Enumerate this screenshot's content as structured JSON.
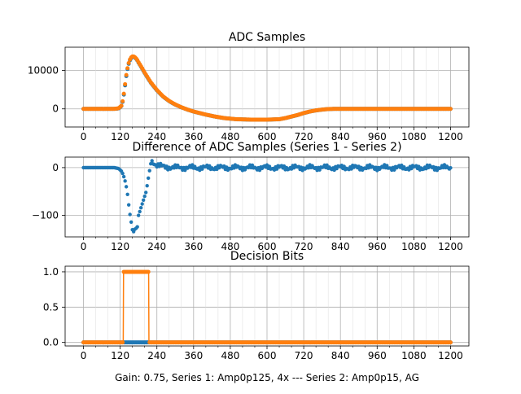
{
  "figure": {
    "footer": "Gain: 0.75, Series 1: Amp0p125, 4x --- Series 2: Amp0p15, AG"
  },
  "colors": {
    "series1": "#1f77b4",
    "series2": "#ff7f0e",
    "grid": "#b0b0b0"
  },
  "chart_data": [
    {
      "type": "scatter",
      "title": "ADC Samples",
      "xlabel": "",
      "ylabel": "",
      "xlim": [
        -60,
        1260
      ],
      "ylim": [
        -4700,
        16000
      ],
      "xticks": [
        0,
        120,
        240,
        360,
        480,
        600,
        720,
        840,
        960,
        1080,
        1200
      ],
      "yticks": [
        0,
        10000
      ],
      "grid": true,
      "minor_x_step": 40,
      "series": [
        {
          "points_x": [
            0,
            100,
            115,
            125,
            130,
            135,
            140,
            145,
            150,
            155,
            160,
            165,
            170,
            175,
            180,
            190,
            200,
            220,
            240,
            260,
            280,
            300,
            320,
            340,
            360,
            380,
            400,
            430,
            460,
            500,
            550,
            600,
            640,
            660,
            680,
            700,
            720,
            740,
            760,
            780,
            800,
            820,
            840,
            900,
            1000,
            1100,
            1200
          ],
          "points_y": [
            0,
            0,
            100,
            800,
            2500,
            5500,
            8500,
            10800,
            12300,
            13100,
            13500,
            13500,
            13200,
            12700,
            12000,
            10700,
            9300,
            6800,
            4800,
            3200,
            2000,
            1100,
            400,
            -200,
            -700,
            -1100,
            -1500,
            -2000,
            -2400,
            -2700,
            -2800,
            -2800,
            -2700,
            -2400,
            -2000,
            -1600,
            -1100,
            -700,
            -400,
            -200,
            -50,
            0,
            0,
            0,
            0,
            0,
            0
          ]
        },
        {
          "points_x": [
            0,
            100,
            115,
            125,
            130,
            135,
            140,
            145,
            150,
            155,
            160,
            165,
            170,
            175,
            180,
            190,
            200,
            220,
            240,
            260,
            280,
            300,
            320,
            340,
            360,
            380,
            400,
            430,
            460,
            500,
            550,
            600,
            640,
            660,
            680,
            700,
            720,
            740,
            760,
            780,
            800,
            820,
            840,
            900,
            1000,
            1100,
            1200
          ],
          "points_y": [
            0,
            0,
            150,
            900,
            2700,
            5800,
            8800,
            11000,
            12500,
            13300,
            13600,
            13600,
            13300,
            12800,
            12100,
            10800,
            9400,
            6900,
            4900,
            3250,
            2050,
            1150,
            420,
            -190,
            -690,
            -1090,
            -1490,
            -1990,
            -2390,
            -2690,
            -2790,
            -2790,
            -2690,
            -2390,
            -1990,
            -1590,
            -1090,
            -690,
            -390,
            -190,
            -40,
            0,
            0,
            0,
            0,
            0,
            0
          ]
        }
      ]
    },
    {
      "type": "scatter",
      "title": "Difference of ADC Samples (Series 1 - Series 2)",
      "xlabel": "",
      "ylabel": "",
      "xlim": [
        -60,
        1260
      ],
      "ylim": [
        -145,
        22
      ],
      "xticks": [
        0,
        120,
        240,
        360,
        480,
        600,
        720,
        840,
        960,
        1080,
        1200
      ],
      "yticks": [
        -100,
        0
      ],
      "grid": true,
      "minor_x_step": 40,
      "series": [
        {
          "points_x": [
            0,
            100,
            115,
            125,
            130,
            135,
            140,
            145,
            150,
            155,
            160,
            165,
            170,
            175,
            180,
            185,
            190,
            195,
            200,
            205,
            210,
            215,
            220,
            225,
            230,
            240,
            260,
            300,
            400,
            500,
            600,
            700,
            800,
            900,
            1000,
            1100,
            1200
          ],
          "points_y": [
            0,
            0,
            -2,
            -8,
            -15,
            -25,
            -40,
            -60,
            -90,
            -110,
            -130,
            -135,
            -125,
            -130,
            -100,
            -90,
            -80,
            -70,
            -60,
            -50,
            -30,
            -10,
            8,
            15,
            10,
            5,
            2,
            0,
            0,
            0,
            0,
            0,
            0,
            0,
            0,
            0,
            0
          ]
        }
      ]
    },
    {
      "type": "line",
      "title": "Decision Bits",
      "xlabel": "Gain: 0.75, Series 1: Amp0p125, 4x --- Series 2: Amp0p15, AG",
      "ylabel": "",
      "xlim": [
        -60,
        1260
      ],
      "ylim": [
        -0.05,
        1.08
      ],
      "xticks": [
        0,
        120,
        240,
        360,
        480,
        600,
        720,
        840,
        960,
        1080,
        1200
      ],
      "yticks": [
        0.0,
        0.5,
        1.0
      ],
      "grid": true,
      "minor_x_step": 40,
      "series": [
        {
          "points_x": [
            0,
            1200
          ],
          "points_y": [
            0,
            0
          ]
        },
        {
          "points_x": [
            0,
            130,
            131,
            213,
            214,
            1200
          ],
          "points_y": [
            0,
            0,
            1,
            1,
            0,
            0
          ]
        }
      ]
    }
  ]
}
